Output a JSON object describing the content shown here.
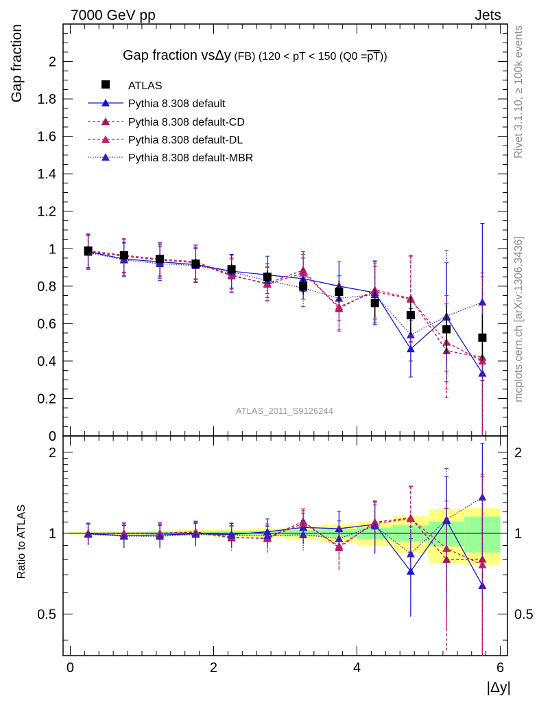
{
  "header": {
    "left": "7000 GeV pp",
    "right": "Jets"
  },
  "side": {
    "rivet": "Rivet 3.1.10, ≥ 100k events",
    "mcplots": "mcplots.cern.ch [arXiv:1306.3436]"
  },
  "title": {
    "main": "Gap fraction vs",
    "dy": "Δy",
    "fb": " (FB)",
    "rest": " (120 < pT < 150 (Q0 =",
    "pt": "pT",
    "close": "))"
  },
  "watermark": "ATLAS_2011_S9126244",
  "ylabel_top": "Gap fraction",
  "ylabel_bottom": "Ratio to ATLAS",
  "xlabel": "|Δy|",
  "colors": {
    "data": "#000000",
    "default": "#1515d8",
    "cd": "#b0105a",
    "dl": "#c41e6e",
    "mbr": "#3a1fb8",
    "band_inner": "#99ff99",
    "band_outer": "#ffff80"
  },
  "chart_data": {
    "type": "scatter",
    "x_edges": [
      0,
      0.5,
      1,
      1.5,
      2,
      2.5,
      3,
      3.5,
      4,
      4.5,
      5,
      5.5,
      6
    ],
    "x": [
      0.25,
      0.75,
      1.25,
      1.75,
      2.25,
      2.75,
      3.25,
      3.75,
      4.25,
      4.75,
      5.25,
      5.75
    ],
    "xlim": [
      -0.1,
      6.1
    ],
    "xticks": [
      "0",
      "2",
      "4",
      "6"
    ],
    "top_panel": {
      "ylim": [
        0,
        2.2
      ],
      "yticks": [
        "0",
        "0.2",
        "0.4",
        "0.6",
        "0.8",
        "1",
        "1.2",
        "1.4",
        "1.6",
        "1.8",
        "2"
      ]
    },
    "ratio_panel": {
      "ylim": [
        0.35,
        2.3
      ],
      "yticks": [
        "0.5",
        "1",
        "2"
      ],
      "log": true
    },
    "series": [
      {
        "name": "ATLAS",
        "style": "data",
        "values": [
          0.99,
          0.965,
          0.945,
          0.92,
          0.89,
          0.85,
          0.8,
          0.77,
          0.71,
          0.645,
          0.57,
          0.525
        ],
        "err_inner": [
          0.005,
          0.007,
          0.01,
          0.012,
          0.015,
          0.018,
          0.022,
          0.028,
          0.035,
          0.045,
          0.06,
          0.08
        ],
        "err_total": [
          0.012,
          0.016,
          0.02,
          0.025,
          0.03,
          0.035,
          0.045,
          0.06,
          0.075,
          0.1,
          0.13,
          0.125
        ]
      },
      {
        "name": "Pythia 8.308 default",
        "style": "solid",
        "values": [
          0.985,
          0.945,
          0.93,
          0.915,
          0.88,
          0.86,
          0.84,
          0.8,
          0.765,
          0.465,
          0.635,
          0.335
        ],
        "err": [
          0.09,
          0.09,
          0.09,
          0.09,
          0.09,
          0.1,
          0.11,
          0.13,
          0.17,
          0.15,
          0.29,
          0.8
        ]
      },
      {
        "name": "Pythia 8.308 default-CD",
        "style": "dashed",
        "values": [
          0.985,
          0.96,
          0.94,
          0.925,
          0.855,
          0.815,
          0.885,
          0.68,
          0.78,
          0.735,
          0.455,
          0.42
        ],
        "err": [
          0.09,
          0.09,
          0.09,
          0.09,
          0.09,
          0.09,
          0.1,
          0.12,
          0.15,
          0.23,
          0.25,
          0.45
        ]
      },
      {
        "name": "Pythia 8.308 default-DL",
        "style": "dashed",
        "values": [
          0.99,
          0.965,
          0.945,
          0.93,
          0.86,
          0.81,
          0.87,
          0.69,
          0.77,
          0.73,
          0.5,
          0.4
        ],
        "err": [
          0.09,
          0.09,
          0.09,
          0.09,
          0.09,
          0.09,
          0.1,
          0.12,
          0.15,
          0.23,
          0.25,
          0.45
        ]
      },
      {
        "name": "Pythia 8.308 default-MBR",
        "style": "dotted",
        "values": [
          0.98,
          0.94,
          0.92,
          0.91,
          0.875,
          0.83,
          0.79,
          0.735,
          0.755,
          0.54,
          0.64,
          0.715
        ],
        "err": [
          0.09,
          0.09,
          0.09,
          0.09,
          0.09,
          0.09,
          0.1,
          0.12,
          0.15,
          0.14,
          0.35,
          0.42
        ]
      }
    ]
  }
}
